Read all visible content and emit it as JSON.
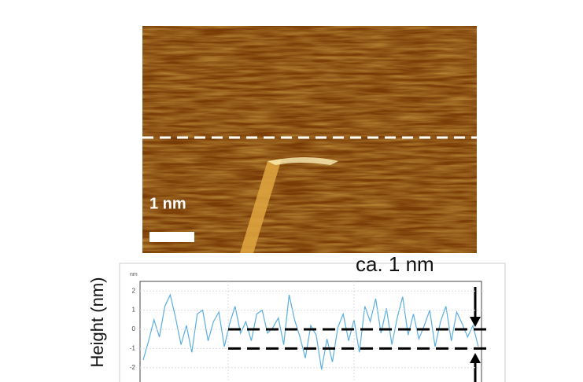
{
  "chart_data": {
    "type": "line",
    "image_scale_label": "1 nm",
    "annotation": "ca. 1 nm",
    "y_label": "Height (nm)",
    "y_unit": "nm",
    "ylim": [
      -2.5,
      2.5
    ],
    "yticks": [
      2,
      1,
      0,
      -1,
      -2
    ],
    "reference_lines": [
      0,
      -1
    ],
    "grid": true,
    "series": [
      {
        "name": "Height",
        "color": "#5aaee0",
        "values": [
          -1.6,
          -0.6,
          0.5,
          -0.4,
          1.2,
          1.8,
          0.6,
          -0.8,
          0.2,
          -1.2,
          0.8,
          1.0,
          -0.6,
          0.4,
          0.9,
          -0.9,
          0.3,
          1.2,
          -0.2,
          0.4,
          -0.6,
          0.8,
          1.0,
          -0.2,
          0.1,
          0.6,
          -0.8,
          1.8,
          0.5,
          -0.4,
          -1.5,
          0.2,
          -0.3,
          -2.1,
          -0.5,
          -1.7,
          0.1,
          0.8,
          -0.6,
          0.5,
          -1.2,
          1.2,
          0.4,
          1.6,
          -0.2,
          1.1,
          -0.8,
          0.6,
          1.7,
          -0.3,
          0.8,
          -0.5,
          0.2,
          1.0,
          -0.9,
          0.4,
          1.2,
          -0.6,
          0.9,
          0.3,
          -0.4,
          0.2,
          -0.9
        ]
      }
    ]
  }
}
